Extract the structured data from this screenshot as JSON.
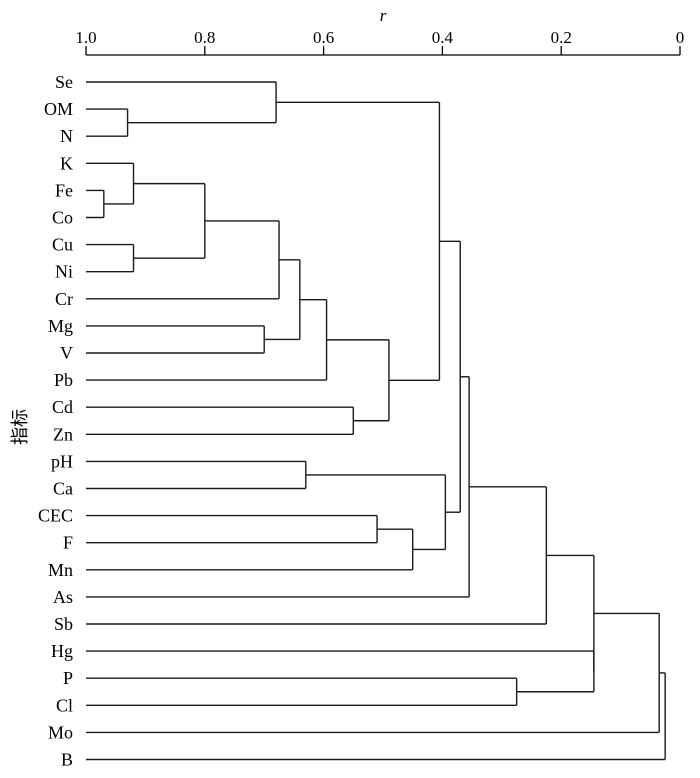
{
  "chart_data": {
    "type": "dendrogram",
    "x_axis": {
      "label": "r",
      "range": [
        1.0,
        0
      ],
      "ticks": [
        1.0,
        0.8,
        0.6,
        0.4,
        0.2,
        0
      ],
      "tick_labels": [
        "1.0",
        "0.8",
        "0.6",
        "0.4",
        "0.2",
        "0"
      ],
      "position": "top",
      "reversed": true
    },
    "y_axis": {
      "label": "指标"
    },
    "leaves": [
      "Se",
      "OM",
      "N",
      "K",
      "Fe",
      "Co",
      "Cu",
      "Ni",
      "Cr",
      "Mg",
      "V",
      "Pb",
      "Cd",
      "Zn",
      "pH",
      "Ca",
      "CEC",
      "F",
      "Mn",
      "As",
      "Sb",
      "Hg",
      "P",
      "Cl",
      "Mo",
      "B"
    ],
    "merges": [
      {
        "id": "c1",
        "left": "Fe",
        "right": "Co",
        "r": 0.97
      },
      {
        "id": "c2",
        "left": "OM",
        "right": "N",
        "r": 0.93
      },
      {
        "id": "c3",
        "left": "K",
        "right": "c1",
        "r": 0.92
      },
      {
        "id": "c4",
        "left": "Cu",
        "right": "Ni",
        "r": 0.92
      },
      {
        "id": "c5",
        "left": "c3",
        "right": "c4",
        "r": 0.8
      },
      {
        "id": "c6",
        "left": "Se",
        "right": "c2",
        "r": 0.68
      },
      {
        "id": "c7",
        "left": "c5",
        "right": "Cr",
        "r": 0.675
      },
      {
        "id": "c8",
        "left": "Mg",
        "right": "V",
        "r": 0.7
      },
      {
        "id": "c9",
        "left": "c7",
        "right": "c8",
        "r": 0.64
      },
      {
        "id": "c10",
        "left": "c9",
        "right": "Pb",
        "r": 0.595
      },
      {
        "id": "c11",
        "left": "Cd",
        "right": "Zn",
        "r": 0.55
      },
      {
        "id": "c12",
        "left": "c10",
        "right": "c11",
        "r": 0.49
      },
      {
        "id": "c13",
        "left": "c6",
        "right": "c12",
        "r": 0.405
      },
      {
        "id": "c14",
        "left": "pH",
        "right": "Ca",
        "r": 0.63
      },
      {
        "id": "c15",
        "left": "CEC",
        "right": "F",
        "r": 0.51
      },
      {
        "id": "c16",
        "left": "c15",
        "right": "Mn",
        "r": 0.45
      },
      {
        "id": "c17",
        "left": "c14",
        "right": "c16",
        "r": 0.395
      },
      {
        "id": "c18",
        "left": "c13",
        "right": "c17",
        "r": 0.37
      },
      {
        "id": "c19",
        "left": "c18",
        "right": "As",
        "r": 0.355
      },
      {
        "id": "c20",
        "left": "c19",
        "right": "Sb",
        "r": 0.225
      },
      {
        "id": "c21",
        "left": "P",
        "right": "Cl",
        "r": 0.275
      },
      {
        "id": "c22",
        "left": "Hg",
        "right": "c21",
        "r": 0.145
      },
      {
        "id": "c23",
        "left": "c20",
        "right": "c22",
        "r": 0.145
      },
      {
        "id": "c24",
        "left": "c23",
        "right": "Mo",
        "r": 0.035
      },
      {
        "id": "c25",
        "left": "c24",
        "right": "B",
        "r": 0.025
      }
    ]
  }
}
